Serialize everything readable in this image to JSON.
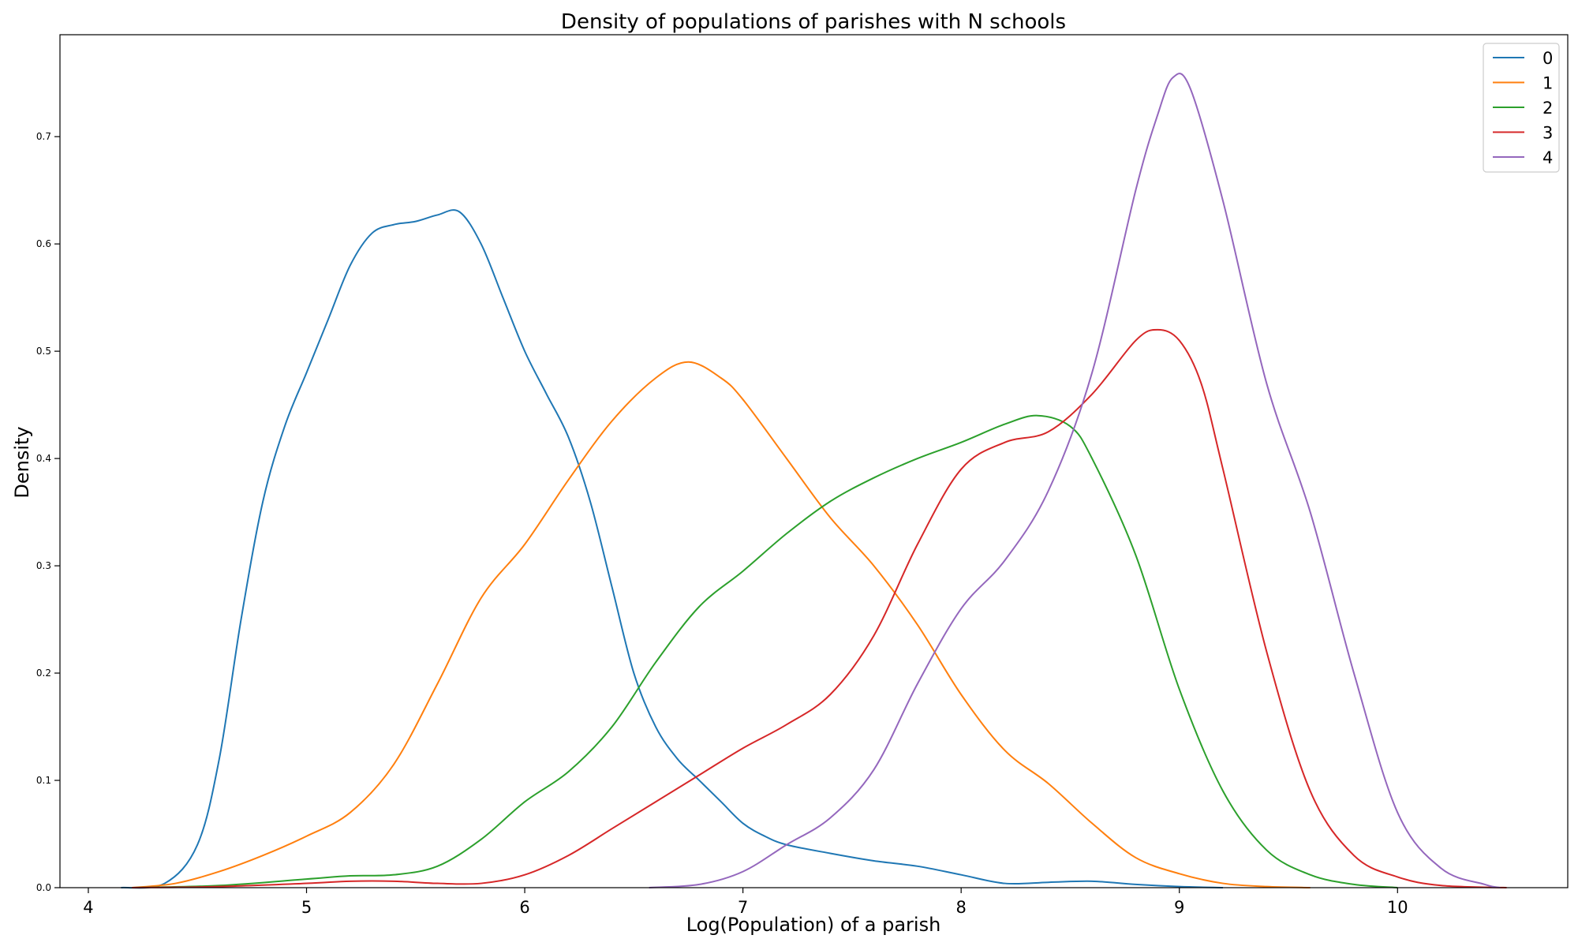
{
  "chart_data": {
    "type": "line",
    "title": "Density of populations of parishes with N schools",
    "xlabel": "Log(Population) of a parish",
    "ylabel": "Density",
    "xlim": [
      3.87,
      10.78
    ],
    "ylim": [
      0,
      0.795
    ],
    "xticks": [
      4,
      5,
      6,
      7,
      8,
      9,
      10
    ],
    "yticks": [
      0.0,
      0.1,
      0.2,
      0.3,
      0.4,
      0.5,
      0.6,
      0.7
    ],
    "xtick_labels": [
      "4",
      "5",
      "6",
      "7",
      "8",
      "9",
      "10"
    ],
    "ytick_labels": [
      "0.0",
      "0.1",
      "0.2",
      "0.3",
      "0.4",
      "0.5",
      "0.6",
      "0.7"
    ],
    "grid": false,
    "legend_position": "top-right",
    "series": [
      {
        "name": "0",
        "color": "#1f77b4",
        "points": [
          [
            4.15,
            0.0
          ],
          [
            4.35,
            0.004
          ],
          [
            4.5,
            0.04
          ],
          [
            4.6,
            0.12
          ],
          [
            4.7,
            0.25
          ],
          [
            4.8,
            0.36
          ],
          [
            4.9,
            0.43
          ],
          [
            5.0,
            0.48
          ],
          [
            5.1,
            0.53
          ],
          [
            5.2,
            0.58
          ],
          [
            5.3,
            0.61
          ],
          [
            5.4,
            0.618
          ],
          [
            5.5,
            0.621
          ],
          [
            5.6,
            0.627
          ],
          [
            5.7,
            0.63
          ],
          [
            5.8,
            0.6
          ],
          [
            5.9,
            0.55
          ],
          [
            6.0,
            0.5
          ],
          [
            6.1,
            0.46
          ],
          [
            6.2,
            0.42
          ],
          [
            6.3,
            0.36
          ],
          [
            6.4,
            0.28
          ],
          [
            6.5,
            0.2
          ],
          [
            6.6,
            0.15
          ],
          [
            6.7,
            0.12
          ],
          [
            6.8,
            0.1
          ],
          [
            6.9,
            0.08
          ],
          [
            7.0,
            0.06
          ],
          [
            7.1,
            0.048
          ],
          [
            7.2,
            0.04
          ],
          [
            7.4,
            0.032
          ],
          [
            7.6,
            0.025
          ],
          [
            7.8,
            0.02
          ],
          [
            8.0,
            0.012
          ],
          [
            8.2,
            0.004
          ],
          [
            8.4,
            0.005
          ],
          [
            8.6,
            0.006
          ],
          [
            8.8,
            0.003
          ],
          [
            9.0,
            0.001
          ],
          [
            9.2,
            0.0
          ]
        ]
      },
      {
        "name": "1",
        "color": "#ff7f0e",
        "points": [
          [
            4.2,
            0.0
          ],
          [
            4.4,
            0.004
          ],
          [
            4.6,
            0.015
          ],
          [
            4.8,
            0.03
          ],
          [
            5.0,
            0.048
          ],
          [
            5.2,
            0.07
          ],
          [
            5.4,
            0.115
          ],
          [
            5.6,
            0.19
          ],
          [
            5.8,
            0.27
          ],
          [
            6.0,
            0.32
          ],
          [
            6.2,
            0.38
          ],
          [
            6.4,
            0.435
          ],
          [
            6.6,
            0.475
          ],
          [
            6.75,
            0.49
          ],
          [
            6.9,
            0.475
          ],
          [
            7.0,
            0.455
          ],
          [
            7.2,
            0.4
          ],
          [
            7.4,
            0.345
          ],
          [
            7.6,
            0.3
          ],
          [
            7.8,
            0.245
          ],
          [
            8.0,
            0.18
          ],
          [
            8.2,
            0.128
          ],
          [
            8.4,
            0.097
          ],
          [
            8.6,
            0.06
          ],
          [
            8.8,
            0.028
          ],
          [
            9.0,
            0.013
          ],
          [
            9.2,
            0.004
          ],
          [
            9.4,
            0.001
          ],
          [
            9.6,
            0.0
          ]
        ]
      },
      {
        "name": "2",
        "color": "#2ca02c",
        "points": [
          [
            4.2,
            0.0
          ],
          [
            4.6,
            0.002
          ],
          [
            5.0,
            0.008
          ],
          [
            5.2,
            0.011
          ],
          [
            5.4,
            0.012
          ],
          [
            5.6,
            0.02
          ],
          [
            5.8,
            0.045
          ],
          [
            6.0,
            0.08
          ],
          [
            6.2,
            0.108
          ],
          [
            6.4,
            0.15
          ],
          [
            6.6,
            0.21
          ],
          [
            6.8,
            0.262
          ],
          [
            7.0,
            0.295
          ],
          [
            7.2,
            0.33
          ],
          [
            7.4,
            0.36
          ],
          [
            7.6,
            0.382
          ],
          [
            7.8,
            0.4
          ],
          [
            8.0,
            0.415
          ],
          [
            8.2,
            0.432
          ],
          [
            8.35,
            0.44
          ],
          [
            8.5,
            0.43
          ],
          [
            8.6,
            0.4
          ],
          [
            8.8,
            0.31
          ],
          [
            9.0,
            0.185
          ],
          [
            9.2,
            0.09
          ],
          [
            9.4,
            0.035
          ],
          [
            9.6,
            0.012
          ],
          [
            9.8,
            0.003
          ],
          [
            10.0,
            0.0
          ]
        ]
      },
      {
        "name": "3",
        "color": "#d62728",
        "points": [
          [
            4.2,
            0.0
          ],
          [
            4.6,
            0.001
          ],
          [
            5.0,
            0.004
          ],
          [
            5.2,
            0.006
          ],
          [
            5.4,
            0.006
          ],
          [
            5.6,
            0.004
          ],
          [
            5.8,
            0.004
          ],
          [
            6.0,
            0.012
          ],
          [
            6.2,
            0.03
          ],
          [
            6.4,
            0.055
          ],
          [
            6.6,
            0.08
          ],
          [
            6.8,
            0.105
          ],
          [
            7.0,
            0.13
          ],
          [
            7.2,
            0.152
          ],
          [
            7.4,
            0.18
          ],
          [
            7.6,
            0.235
          ],
          [
            7.8,
            0.32
          ],
          [
            8.0,
            0.39
          ],
          [
            8.2,
            0.415
          ],
          [
            8.4,
            0.425
          ],
          [
            8.6,
            0.46
          ],
          [
            8.8,
            0.51
          ],
          [
            8.9,
            0.52
          ],
          [
            9.0,
            0.51
          ],
          [
            9.1,
            0.47
          ],
          [
            9.2,
            0.39
          ],
          [
            9.4,
            0.22
          ],
          [
            9.6,
            0.09
          ],
          [
            9.8,
            0.03
          ],
          [
            10.0,
            0.01
          ],
          [
            10.2,
            0.002
          ],
          [
            10.5,
            0.0
          ]
        ]
      },
      {
        "name": "4",
        "color": "#9467bd",
        "points": [
          [
            6.57,
            0.0
          ],
          [
            6.8,
            0.003
          ],
          [
            7.0,
            0.015
          ],
          [
            7.2,
            0.04
          ],
          [
            7.4,
            0.065
          ],
          [
            7.6,
            0.11
          ],
          [
            7.8,
            0.19
          ],
          [
            8.0,
            0.26
          ],
          [
            8.2,
            0.305
          ],
          [
            8.4,
            0.37
          ],
          [
            8.6,
            0.48
          ],
          [
            8.8,
            0.65
          ],
          [
            8.9,
            0.72
          ],
          [
            8.97,
            0.755
          ],
          [
            9.05,
            0.745
          ],
          [
            9.2,
            0.64
          ],
          [
            9.4,
            0.47
          ],
          [
            9.6,
            0.35
          ],
          [
            9.8,
            0.2
          ],
          [
            10.0,
            0.07
          ],
          [
            10.2,
            0.018
          ],
          [
            10.4,
            0.003
          ],
          [
            10.47,
            0.0
          ]
        ]
      }
    ]
  }
}
